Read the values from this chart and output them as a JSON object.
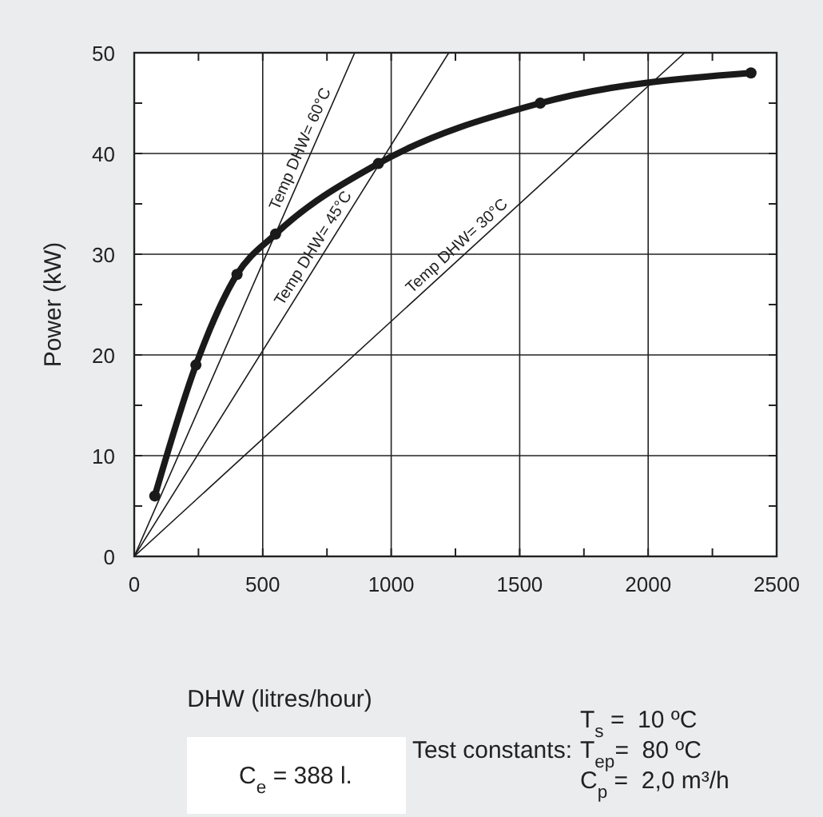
{
  "chart_data": {
    "type": "line",
    "xlabel": "DHW (litres/hour)",
    "ylabel": "Power (kW)",
    "xlim": [
      0,
      2500
    ],
    "ylim": [
      0,
      50
    ],
    "xticks": [
      0,
      {
        "value": 250,
        "label": null
      },
      500,
      {
        "value": 750,
        "label": null
      },
      1000,
      {
        "value": 1250,
        "label": null
      },
      1500,
      {
        "value": 1750,
        "label": null
      },
      2000,
      {
        "value": 2250,
        "label": null
      },
      2500
    ],
    "yticks": [
      0,
      {
        "value": 5,
        "label": null
      },
      10,
      {
        "value": 15,
        "label": null
      },
      20,
      {
        "value": 25,
        "label": null
      },
      30,
      {
        "value": 35,
        "label": null
      },
      40,
      {
        "value": 45,
        "label": null
      },
      50
    ],
    "grid": true,
    "series": [
      {
        "color": "#1a1a1a",
        "x": [
          80,
          240,
          400,
          550,
          950,
          1580,
          2400
        ],
        "values": [
          6,
          19,
          28,
          32,
          39,
          45,
          48
        ],
        "marker": "circle"
      },
      {
        "color": "#1a1a1a",
        "x": [
          0,
          858
        ],
        "values": [
          0,
          50
        ],
        "marker": "none"
      },
      {
        "color": "#1a1a1a",
        "x": [
          0,
          1224
        ],
        "values": [
          0,
          50
        ],
        "marker": "none"
      },
      {
        "color": "#1a1a1a",
        "x": [
          0,
          2142
        ],
        "values": [
          0,
          50
        ],
        "marker": "none"
      }
    ],
    "annotations": [
      {
        "text": "Temp DHW= 60°C",
        "x": 686,
        "y": 40
      },
      {
        "text": "Temp DHW= 45°C",
        "x": 734,
        "y": 30
      },
      {
        "text": "Temp DHW= 30°C",
        "x": 1285,
        "y": 30
      },
      "C$_{e}$ = 388 l.",
      "Test constants:",
      "T$_{s}$ =  10 ºC",
      "T$_{ep}$=  80 ºC",
      "C$_{p}$ =  2,0 m³/h"
    ]
  }
}
